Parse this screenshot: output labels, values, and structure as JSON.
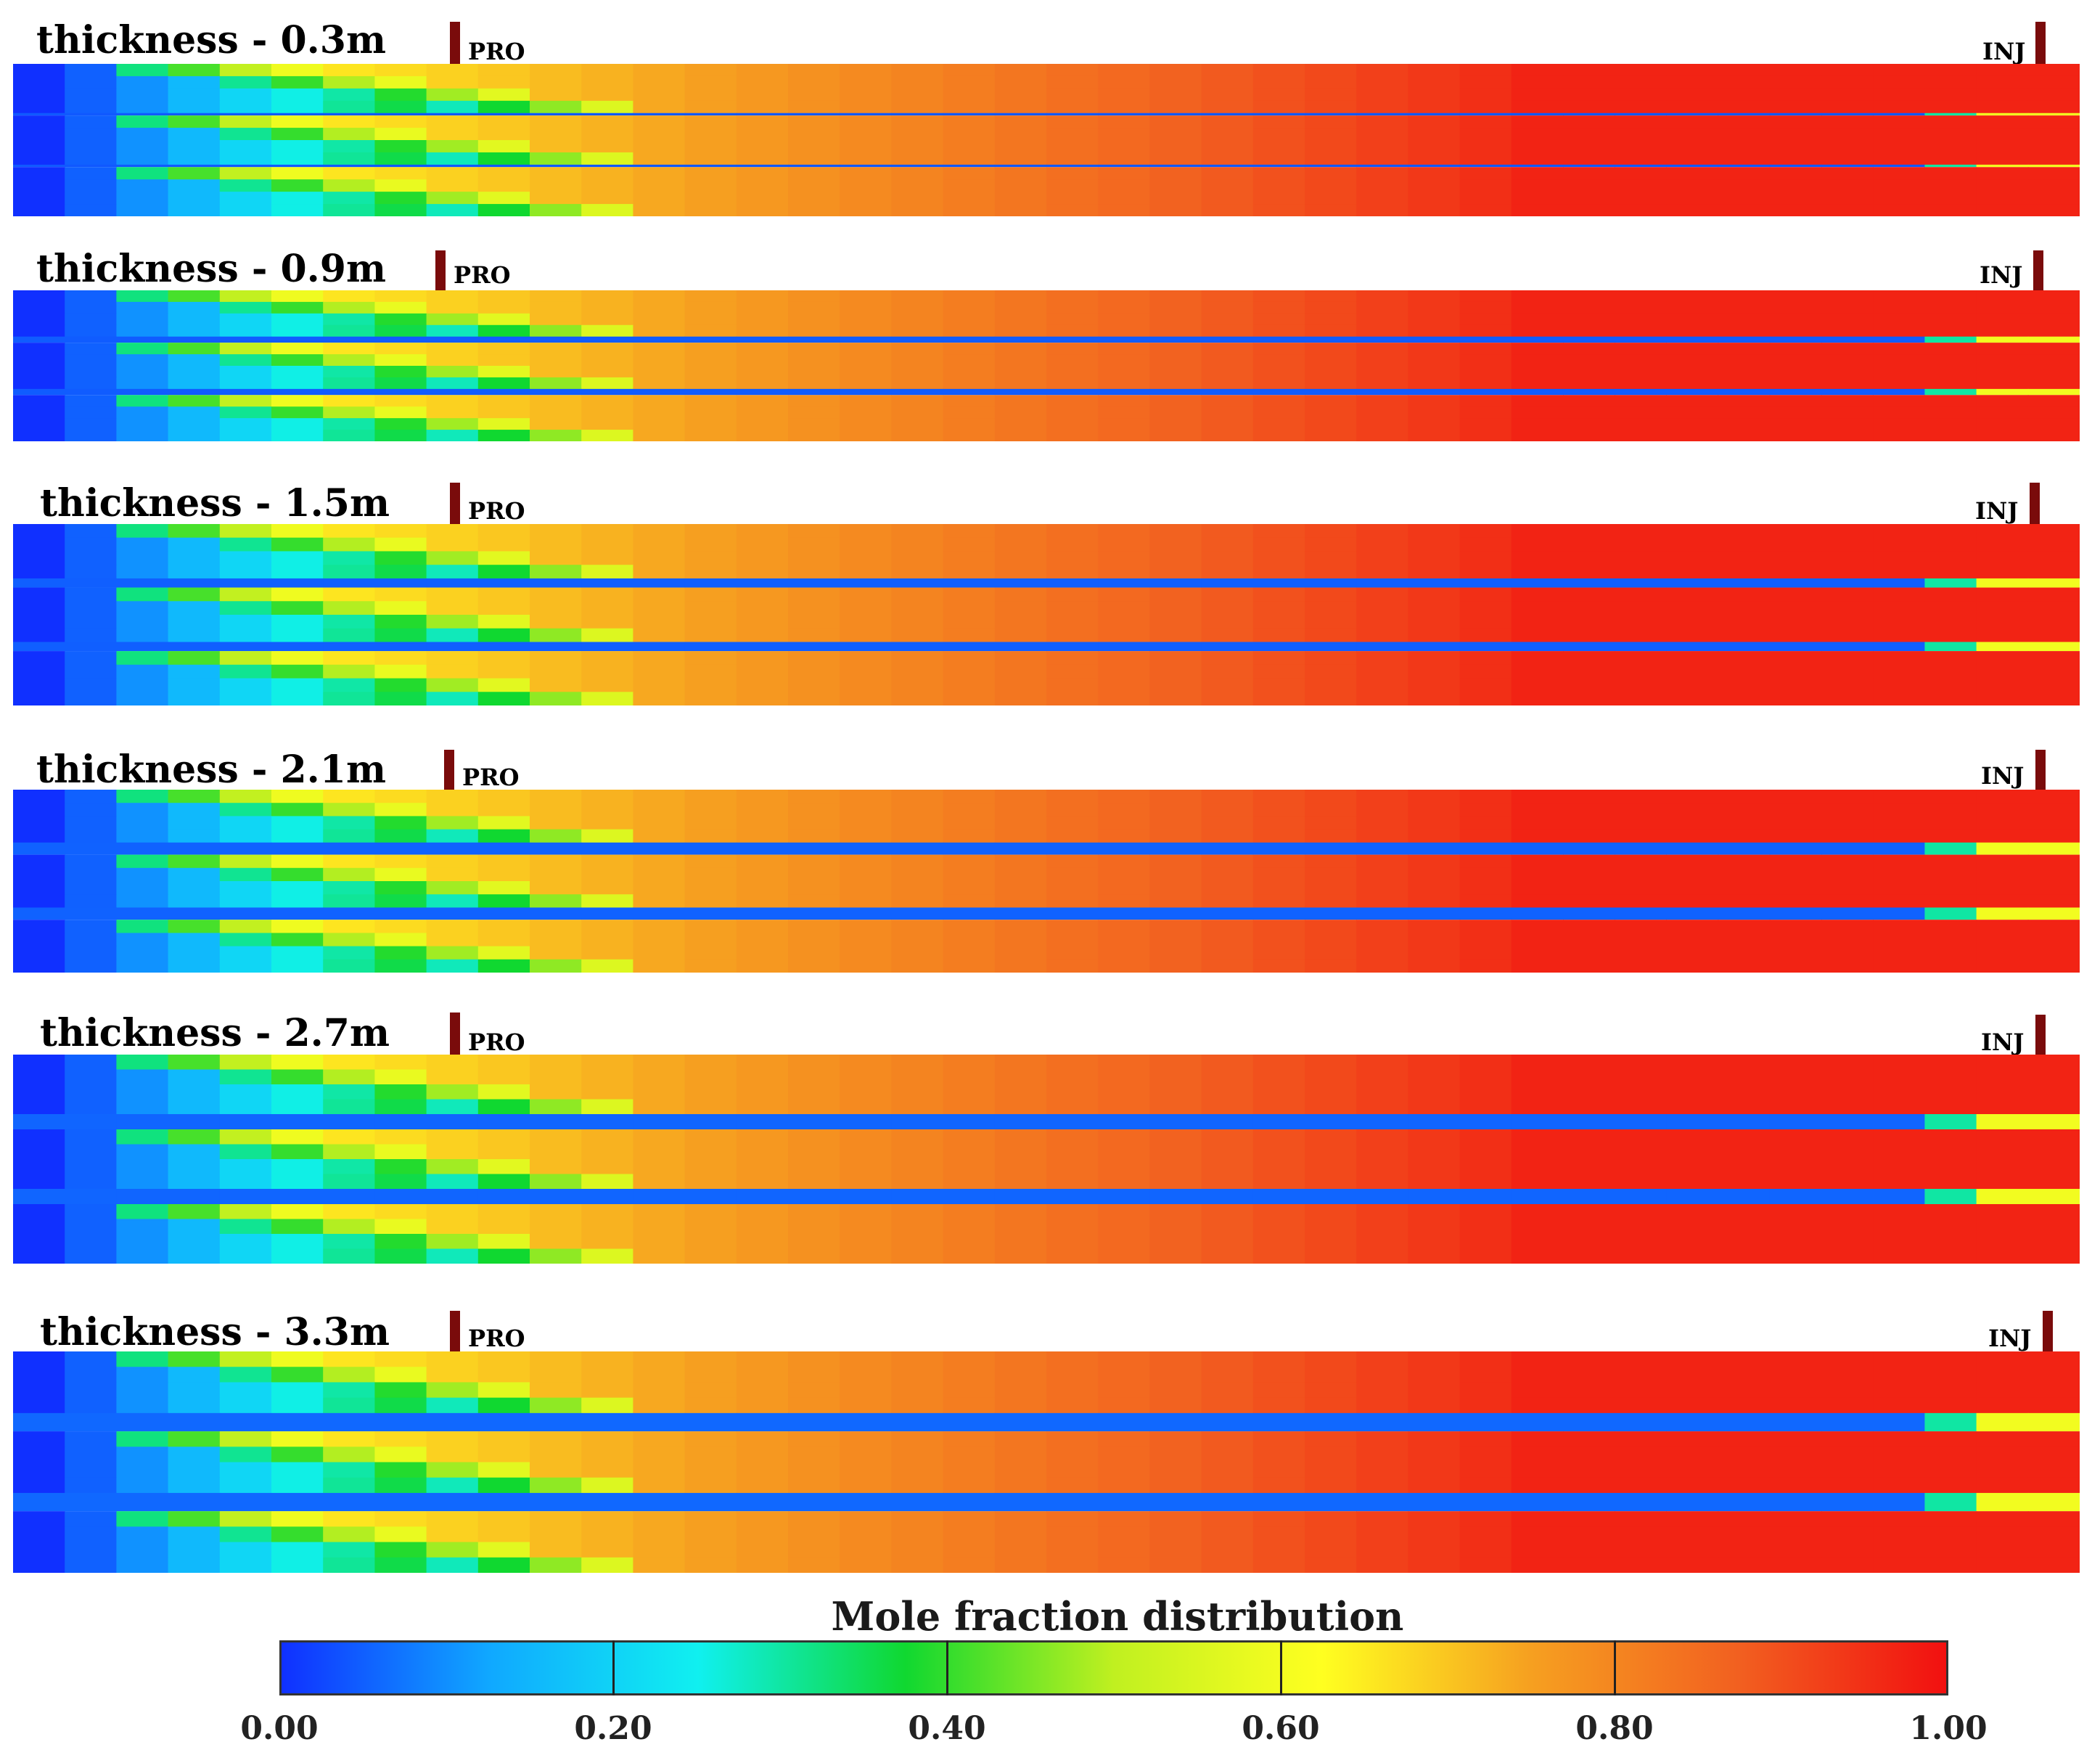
{
  "panels": [
    {
      "title": "thickness - 0.3m",
      "producer_label": "PRO",
      "injector_label": "INJ",
      "channel_depth": 0.12
    },
    {
      "title": "thickness - 0.9m",
      "producer_label": "PRO",
      "injector_label": "INJ",
      "channel_depth": 0.3
    },
    {
      "title": "thickness - 1.5m",
      "producer_label": "PRO",
      "injector_label": "INJ",
      "channel_depth": 0.45
    },
    {
      "title": "thickness - 2.1m",
      "producer_label": "PRO",
      "injector_label": "INJ",
      "channel_depth": 0.6
    },
    {
      "title": "thickness - 2.7m",
      "producer_label": "PRO",
      "injector_label": "INJ",
      "channel_depth": 0.75
    },
    {
      "title": "thickness - 3.3m",
      "producer_label": "PRO",
      "injector_label": "INJ",
      "channel_depth": 0.9
    }
  ],
  "colorbar": {
    "title": "Mole fraction distribution",
    "ticks": [
      "0.00",
      "0.20",
      "0.40",
      "0.60",
      "0.80",
      "1.00"
    ],
    "tick_values": [
      0,
      0.2,
      0.4,
      0.6,
      0.8,
      1.0
    ],
    "colors": [
      "#1030ff",
      "#10a8ff",
      "#10f0f0",
      "#10d830",
      "#c0f020",
      "#ffff20",
      "#f6a020",
      "#f26020",
      "#f21010"
    ]
  }
}
